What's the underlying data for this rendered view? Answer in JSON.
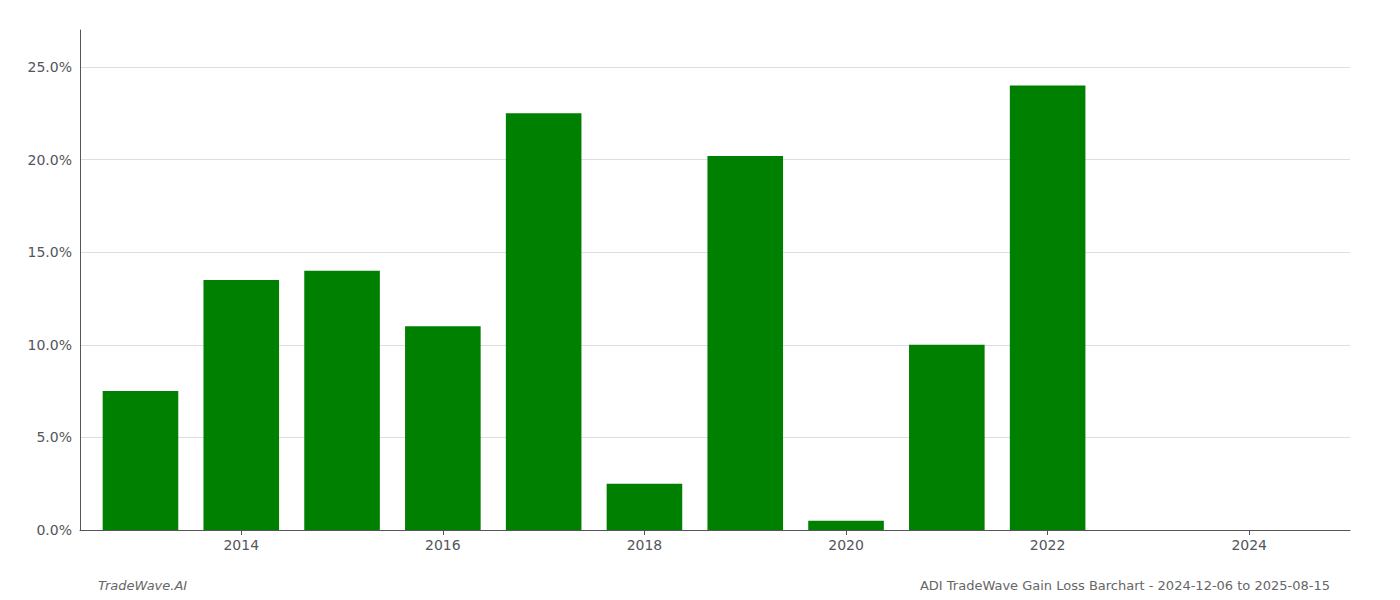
{
  "chart_data": {
    "type": "bar",
    "x": [
      2013,
      2014,
      2015,
      2016,
      2017,
      2018,
      2019,
      2020,
      2021,
      2022,
      2023
    ],
    "values": [
      0.075,
      0.135,
      0.14,
      0.11,
      0.225,
      0.025,
      0.202,
      0.005,
      0.1,
      0.24,
      0.0
    ],
    "color": "#008000",
    "xlim": [
      2012.4,
      2025.0
    ],
    "xticks": [
      2014,
      2016,
      2018,
      2020,
      2022,
      2024
    ],
    "ylim": [
      0,
      0.27
    ],
    "yticks": [
      {
        "value": 0.0,
        "label": "0.0%"
      },
      {
        "value": 0.05,
        "label": "5.0%"
      },
      {
        "value": 0.1,
        "label": "10.0%"
      },
      {
        "value": 0.15,
        "label": "15.0%"
      },
      {
        "value": 0.2,
        "label": "20.0%"
      },
      {
        "value": 0.25,
        "label": "25.0%"
      }
    ],
    "grid": true,
    "annotations": [
      "TradeWave.AI",
      "ADI TradeWave Gain Loss Barchart - 2024-12-06 to 2025-08-15"
    ]
  }
}
